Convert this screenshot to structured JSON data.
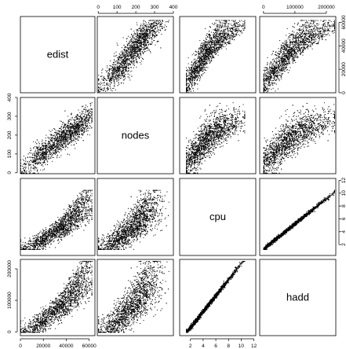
{
  "chart_data": {
    "type": "scatter-matrix",
    "variables": [
      {
        "name": "edist",
        "range": [
          0,
          65000
        ],
        "ticks": [
          0,
          20000,
          40000,
          60000
        ]
      },
      {
        "name": "nodes",
        "range": [
          -5,
          400
        ],
        "ticks": [
          0,
          100,
          200,
          300,
          400
        ]
      },
      {
        "name": "cpu",
        "range": [
          0.3,
          12.3
        ],
        "ticks": [
          2,
          4,
          6,
          8,
          10,
          12
        ]
      },
      {
        "name": "hadd",
        "range": [
          -12000,
          230000
        ],
        "ticks": [
          0,
          100000,
          200000
        ]
      }
    ],
    "tick_label_text": {
      "edist": [
        "0",
        "20000",
        "40000",
        "60000"
      ],
      "nodes": [
        "0",
        "100",
        "200",
        "300",
        "400"
      ],
      "cpu": [
        "2",
        "4",
        "6",
        "8",
        "10",
        "12"
      ],
      "hadd": [
        "0",
        "100000",
        "200000"
      ]
    },
    "axes": {
      "top": [
        "nodes",
        "hadd"
      ],
      "bottom": [
        "edist",
        "cpu"
      ],
      "left": [
        "nodes",
        "hadd"
      ],
      "right": [
        "edist",
        "cpu"
      ]
    },
    "sample_points": [
      {
        "edist": 2000,
        "nodes": 10,
        "cpu": 1.6,
        "hadd": 4000
      },
      {
        "edist": 8000,
        "nodes": 50,
        "cpu": 2.0,
        "hadd": 15000
      },
      {
        "edist": 15000,
        "nodes": 90,
        "cpu": 2.8,
        "hadd": 40000
      },
      {
        "edist": 22000,
        "nodes": 130,
        "cpu": 3.6,
        "hadd": 65000
      },
      {
        "edist": 30000,
        "nodes": 170,
        "cpu": 4.6,
        "hadd": 95000
      },
      {
        "edist": 38000,
        "nodes": 205,
        "cpu": 5.8,
        "hadd": 125000
      },
      {
        "edist": 45000,
        "nodes": 235,
        "cpu": 7.0,
        "hadd": 160000
      },
      {
        "edist": 52000,
        "nodes": 260,
        "cpu": 8.2,
        "hadd": 190000
      },
      {
        "edist": 56000,
        "nodes": 300,
        "cpu": 9.2,
        "hadd": 215000
      },
      {
        "edist": 40000,
        "nodes": 160,
        "cpu": 3.2,
        "hadd": 70000
      },
      {
        "edist": 50000,
        "nodes": 180,
        "cpu": 4.0,
        "hadd": 100000
      },
      {
        "edist": 12000,
        "nodes": 120,
        "cpu": 4.5,
        "hadd": 80000
      }
    ],
    "legend": "none",
    "grid": false
  }
}
